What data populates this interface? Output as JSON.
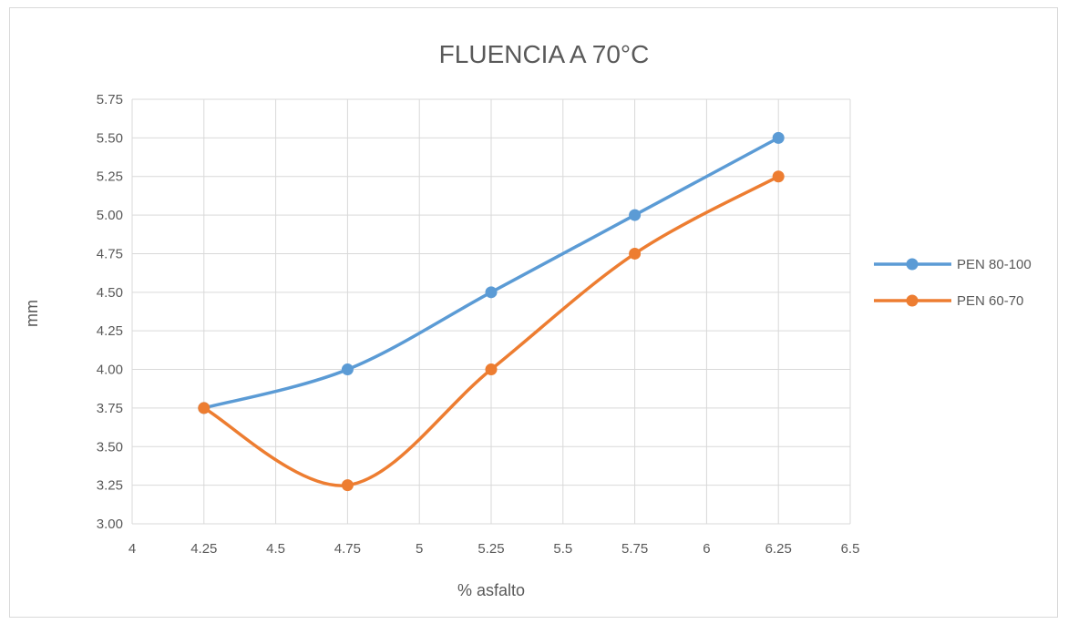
{
  "chart_data": {
    "type": "line",
    "title": "FLUENCIA A 70°C",
    "xlabel": "% asfalto",
    "ylabel": "mm",
    "xlim": [
      4,
      6.5
    ],
    "ylim": [
      3.0,
      5.75
    ],
    "x_ticks": [
      "4",
      "4.25",
      "4.5",
      "4.75",
      "5",
      "5.25",
      "5.5",
      "5.75",
      "6",
      "6.25",
      "6.5"
    ],
    "y_ticks": [
      "3.00",
      "3.25",
      "3.50",
      "3.75",
      "4.00",
      "4.25",
      "4.50",
      "4.75",
      "5.00",
      "5.25",
      "5.50",
      "5.75"
    ],
    "grid": true,
    "smooth": true,
    "legend_position": "right",
    "series": [
      {
        "name": "PEN 80-100",
        "color": "#5b9bd5",
        "x": [
          4.25,
          4.75,
          5.25,
          5.75,
          6.25
        ],
        "y": [
          3.75,
          4.0,
          4.5,
          5.0,
          5.5
        ]
      },
      {
        "name": "PEN 60-70",
        "color": "#ed7d31",
        "x": [
          4.25,
          4.75,
          5.25,
          5.75,
          6.25
        ],
        "y": [
          3.75,
          3.25,
          4.0,
          4.75,
          5.25
        ]
      }
    ]
  }
}
